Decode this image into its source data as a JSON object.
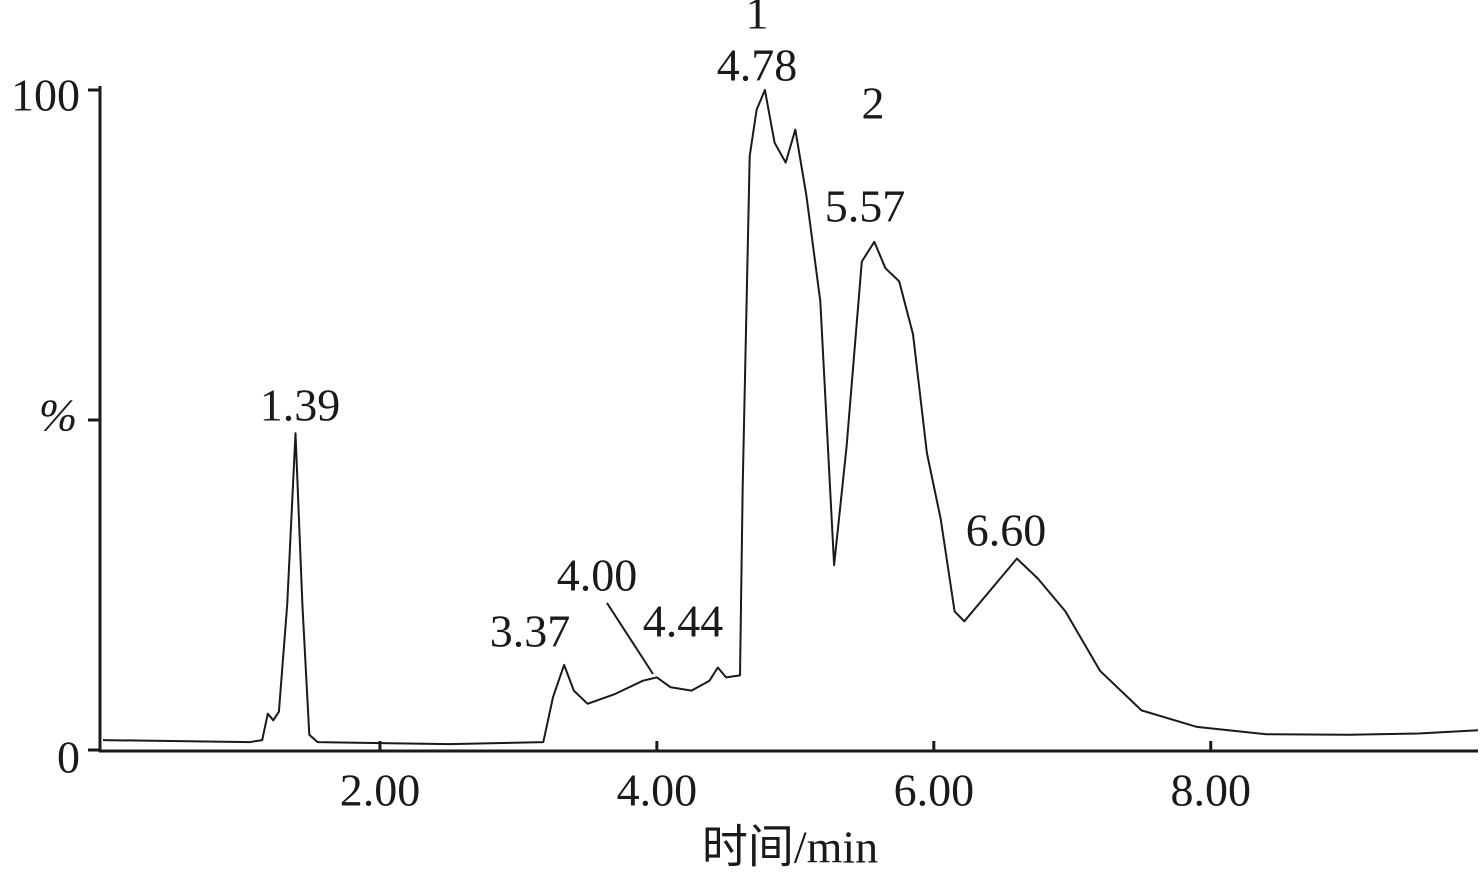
{
  "chart_data": {
    "type": "line",
    "x_label": "时间/min",
    "x": [
      0,
      1.06,
      1.15,
      1.19,
      1.23,
      1.27,
      1.33,
      1.39,
      1.44,
      1.49,
      1.55,
      2.5,
      3.18,
      3.25,
      3.33,
      3.4,
      3.5,
      3.7,
      3.9,
      4.0,
      4.1,
      4.25,
      4.38,
      4.44,
      4.5,
      4.6,
      4.62,
      4.67,
      4.72,
      4.78,
      4.85,
      4.93,
      5.0,
      5.08,
      5.18,
      5.28,
      5.37,
      5.48,
      5.57,
      5.65,
      5.75,
      5.85,
      5.95,
      6.05,
      6.15,
      6.22,
      6.4,
      6.6,
      6.75,
      6.95,
      7.2,
      7.5,
      7.9,
      8.4,
      9.0,
      9.5,
      9.93
    ],
    "series": [
      {
        "color": "#1a1a1a",
        "values": [
          1.5,
          1.2,
          1.5,
          5.5,
          4.5,
          5.8,
          22,
          48,
          22,
          2.3,
          1.2,
          0.9,
          1.2,
          8,
          12.9,
          9,
          7,
          8.5,
          10.5,
          11,
          9.5,
          9,
          10.5,
          12.5,
          11,
          11.3,
          40,
          90,
          97,
          100,
          92,
          89,
          94,
          84,
          68,
          28,
          46,
          74,
          77,
          73,
          71,
          63,
          45,
          35,
          21,
          19.5,
          24,
          29,
          26,
          21,
          12,
          6,
          3.5,
          2.4,
          2.3,
          2.5,
          3
        ]
      }
    ],
    "peak_labels": [
      "1.39",
      "3.37",
      "4.00",
      "4.44",
      "4.78",
      "5.57",
      "6.60"
    ],
    "compound_labels": [
      "1",
      "2"
    ],
    "xlim": [
      0,
      9.93
    ],
    "xticks": [
      {
        "value": 2,
        "label": "2.00"
      },
      {
        "value": 4,
        "label": "4.00"
      },
      {
        "value": 6,
        "label": "6.00"
      },
      {
        "value": 8,
        "label": "8.00"
      }
    ],
    "ylim": [
      0,
      100
    ],
    "yticks": [
      0,
      {
        "value": 50,
        "label": "%"
      },
      100
    ]
  }
}
